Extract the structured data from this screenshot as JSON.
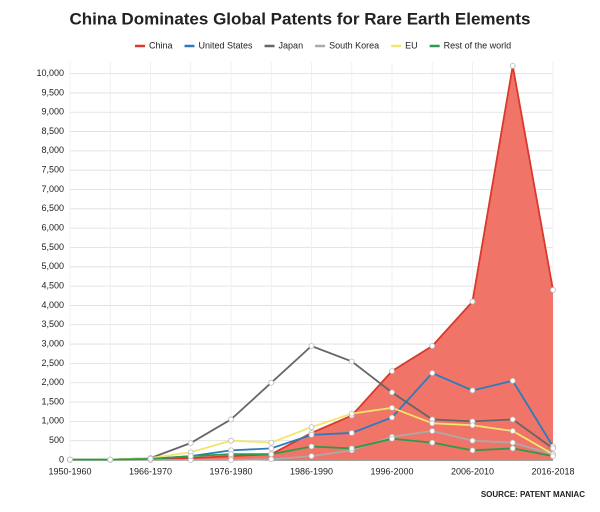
{
  "chart_data": {
    "type": "line",
    "title": "China Dominates Global Patents for Rare Earth Elements",
    "source": "SOURCE: PATENT MANIAC",
    "categories": [
      "1950-1960",
      null,
      "1966-1970",
      null,
      "1976-1980",
      null,
      "1986-1990",
      null,
      "1996-2000",
      null,
      "2006-2010",
      null,
      "2016-2018"
    ],
    "series": [
      {
        "name": "China",
        "color": "#d93a2b",
        "fill": "#f07468",
        "area": true,
        "values": [
          10,
          10,
          20,
          50,
          100,
          150,
          700,
          1150,
          2300,
          2950,
          4100,
          10200,
          4400
        ]
      },
      {
        "name": "United States",
        "color": "#2b7bbf",
        "values": [
          10,
          10,
          30,
          100,
          250,
          300,
          650,
          700,
          1100,
          2250,
          1800,
          2050,
          350
        ]
      },
      {
        "name": "Japan",
        "color": "#666666",
        "values": [
          10,
          10,
          50,
          440,
          1050,
          2000,
          2950,
          2550,
          1750,
          1050,
          1000,
          1050,
          300
        ]
      },
      {
        "name": "South Korea",
        "color": "#aaaaaa",
        "values": [
          0,
          0,
          0,
          0,
          0,
          20,
          100,
          250,
          600,
          750,
          500,
          450,
          150
        ]
      },
      {
        "name": "EU",
        "color": "#f2e66b",
        "values": [
          10,
          10,
          50,
          200,
          500,
          450,
          850,
          1200,
          1350,
          950,
          900,
          750,
          150
        ]
      },
      {
        "name": "Rest of the world",
        "color": "#2e9a4a",
        "values": [
          10,
          10,
          30,
          100,
          150,
          150,
          350,
          300,
          550,
          450,
          250,
          300,
          100
        ]
      }
    ],
    "ylim": [
      0,
      10300
    ],
    "yticks": [
      0,
      500,
      {
        "value": 1000,
        "label": "1,000"
      },
      {
        "value": 1500,
        "label": "1,500"
      },
      {
        "value": 2000,
        "label": "2,000"
      },
      {
        "value": 2500,
        "label": "2,500"
      },
      {
        "value": 3000,
        "label": "3,000"
      },
      {
        "value": 3500,
        "label": "3,500"
      },
      {
        "value": 4000,
        "label": "4,000"
      },
      {
        "value": 4500,
        "label": "4,500"
      },
      {
        "value": 5000,
        "label": "5,000"
      },
      {
        "value": 5500,
        "label": "5,500"
      },
      {
        "value": 6000,
        "label": "6,000"
      },
      {
        "value": 6500,
        "label": "6,500"
      },
      {
        "value": 7000,
        "label": "7,000"
      },
      {
        "value": 7500,
        "label": "7,500"
      },
      {
        "value": 8000,
        "label": "8,000"
      },
      {
        "value": 8500,
        "label": "8,500"
      },
      {
        "value": 9000,
        "label": "9,000"
      },
      {
        "value": 9500,
        "label": "9,500"
      },
      {
        "value": 10000,
        "label": "10,000"
      }
    ],
    "grid": true
  }
}
